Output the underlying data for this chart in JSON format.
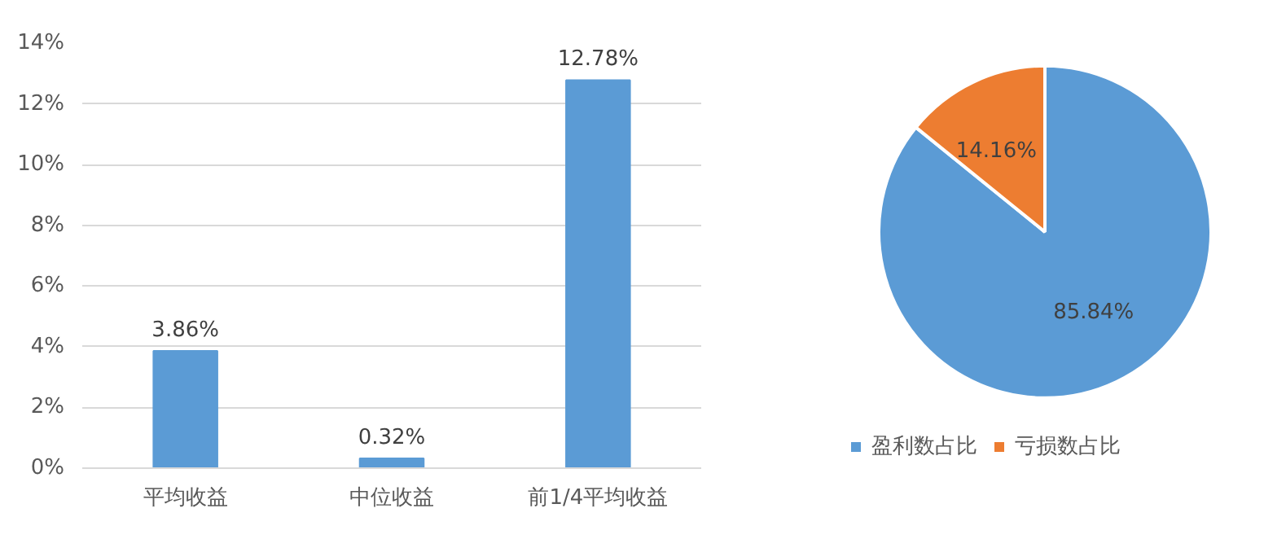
{
  "chart_data": [
    {
      "type": "bar",
      "categories": [
        "平均收益",
        "中位收益",
        "前1/4平均收益"
      ],
      "values": [
        3.86,
        0.32,
        12.78
      ],
      "color": "#5b9bd5",
      "value_labels": [
        "3.86%",
        "0.32%",
        "12.78%"
      ],
      "ylim": [
        0,
        14
      ],
      "yticks": [
        {
          "value": 0,
          "label": "0%"
        },
        {
          "value": 2,
          "label": "2%"
        },
        {
          "value": 4,
          "label": "4%"
        },
        {
          "value": 6,
          "label": "6%"
        },
        {
          "value": 8,
          "label": "8%"
        },
        {
          "value": 10,
          "label": "10%"
        },
        {
          "value": 12,
          "label": "12%"
        },
        {
          "value": 14,
          "label": "14%"
        }
      ],
      "grid": "y"
    },
    {
      "type": "pie",
      "categories": [
        "盈利数占比",
        "亏损数占比"
      ],
      "values": [
        85.84,
        14.16
      ],
      "colors": [
        "#5b9bd5",
        "#ed7d31"
      ],
      "value_labels": [
        "85.84%",
        "14.16%"
      ],
      "legend": "bottom"
    }
  ]
}
